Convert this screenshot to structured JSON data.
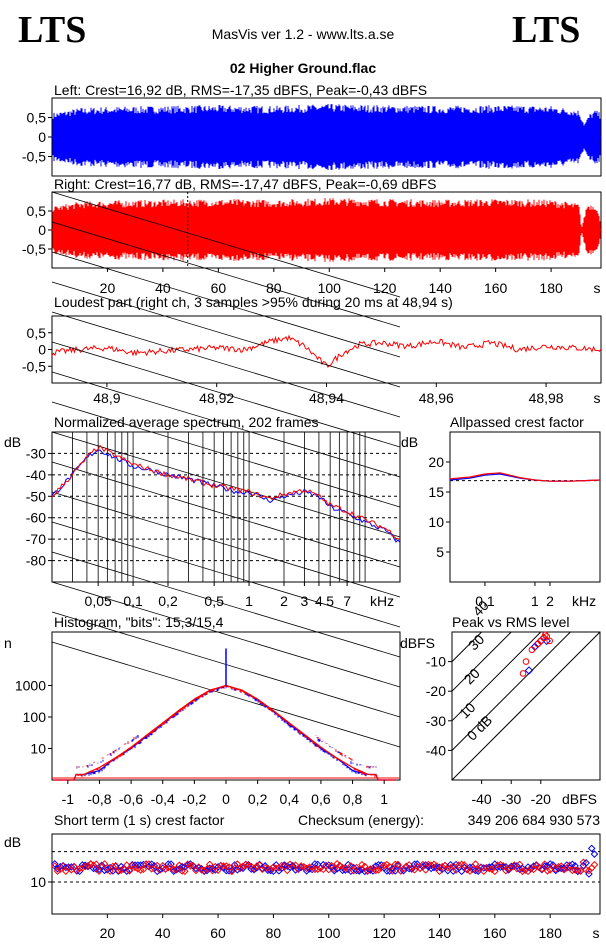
{
  "header": {
    "logo_left": "LTS",
    "logo_right": "LTS",
    "app_title": "MasVis ver 1.2 - www.lts.a.se",
    "file_title": "02 Higher Ground.flac"
  },
  "colors": {
    "left": "#0000ff",
    "right": "#ff0000",
    "frame": "#000000"
  },
  "chart_data": [
    {
      "id": "left-waveform",
      "type": "area",
      "title": "Left: Crest=16,92 dB, RMS=-17,35 dBFS, Peak=-0,43 dBFS",
      "color": "#0000ff",
      "x_range": [
        0,
        198
      ],
      "ylim": [
        -1,
        1
      ],
      "yticks": [
        "0,5",
        "0",
        "-0,5"
      ],
      "ytick_values": [
        0.5,
        0,
        -0.5
      ],
      "envelope": {
        "x": [
          0,
          10,
          20,
          40,
          60,
          80,
          100,
          120,
          140,
          160,
          180,
          190,
          192,
          194,
          196,
          198
        ],
        "amp": [
          0.62,
          0.75,
          0.78,
          0.8,
          0.82,
          0.8,
          0.85,
          0.82,
          0.8,
          0.82,
          0.8,
          0.7,
          0.35,
          0.6,
          0.7,
          0.6
        ]
      }
    },
    {
      "id": "right-waveform",
      "type": "area",
      "title": "Right: Crest=16,77 dB, RMS=-17,47 dBFS, Peak=-0,69 dBFS",
      "color": "#ff0000",
      "x_range": [
        0,
        198
      ],
      "ylim": [
        -1,
        1
      ],
      "yticks": [
        "0,5",
        "0",
        "-0,5"
      ],
      "ytick_values": [
        0.5,
        0,
        -0.5
      ],
      "marker_x": 48.94,
      "envelope": {
        "x": [
          0,
          10,
          20,
          40,
          60,
          80,
          100,
          120,
          140,
          160,
          180,
          190,
          191,
          193,
          196,
          198
        ],
        "amp": [
          0.62,
          0.75,
          0.78,
          0.8,
          0.82,
          0.8,
          0.85,
          0.82,
          0.8,
          0.82,
          0.8,
          0.7,
          0.05,
          0.7,
          0.7,
          0.2
        ]
      },
      "xticks": [
        "20",
        "40",
        "60",
        "80",
        "100",
        "120",
        "140",
        "160",
        "180",
        "s"
      ],
      "xtick_values": [
        20,
        40,
        60,
        80,
        100,
        120,
        140,
        160,
        180
      ]
    },
    {
      "id": "loudest-part",
      "type": "line",
      "title": "Loudest part (right ch, 3 samples >95% during 20 ms at 48,94 s)",
      "color": "#ff0000",
      "xlim": [
        48.89,
        48.99
      ],
      "ylim": [
        -1,
        1
      ],
      "yticks": [
        "0,5",
        "0",
        "-0,5"
      ],
      "ytick_values": [
        0.5,
        0,
        -0.5
      ],
      "xticks": [
        "48,9",
        "48,92",
        "48,94",
        "48,96",
        "48,98",
        "s"
      ],
      "xtick_values": [
        48.9,
        48.92,
        48.94,
        48.96,
        48.98
      ],
      "x": [
        48.89,
        48.895,
        48.9,
        48.905,
        48.91,
        48.915,
        48.92,
        48.925,
        48.93,
        48.933,
        48.936,
        48.938,
        48.94,
        48.943,
        48.946,
        48.95,
        48.955,
        48.96,
        48.965,
        48.97,
        48.975,
        48.98,
        48.985,
        48.99
      ],
      "y": [
        -0.1,
        0.0,
        0.05,
        -0.1,
        -0.05,
        0.0,
        0.05,
        0.0,
        0.25,
        0.35,
        0.1,
        -0.2,
        -0.5,
        -0.1,
        0.15,
        0.2,
        0.1,
        0.25,
        0.05,
        0.2,
        0.0,
        0.1,
        0.05,
        0.0
      ]
    },
    {
      "id": "spectrum",
      "type": "line",
      "title": "Normalized average spectrum, 202 frames",
      "ylabel": "dB",
      "xunit": "kHz",
      "xscale": "log",
      "xlim": [
        0.02,
        20
      ],
      "ylim": [
        -90,
        -20
      ],
      "yticks": [
        "-30",
        "-40",
        "-50",
        "-60",
        "-70",
        "-80"
      ],
      "ytick_values": [
        -30,
        -40,
        -50,
        -60,
        -70,
        -80
      ],
      "xticks": [
        "0,05",
        "0,1",
        "0,2",
        "0,5",
        "1",
        "2",
        "3",
        "4",
        "5",
        "7"
      ],
      "xtick_values": [
        0.05,
        0.1,
        0.2,
        0.5,
        1,
        2,
        3,
        4,
        5,
        7
      ],
      "series": [
        {
          "color": "#0000ff",
          "x": [
            0.02,
            0.03,
            0.04,
            0.05,
            0.07,
            0.1,
            0.15,
            0.2,
            0.3,
            0.5,
            0.8,
            1,
            1.5,
            2,
            3,
            4,
            5,
            7,
            10,
            15,
            20
          ],
          "y": [
            -50,
            -40,
            -32,
            -28,
            -32,
            -36,
            -38,
            -40,
            -42,
            -45,
            -48,
            -48,
            -52,
            -50,
            -48,
            -50,
            -55,
            -58,
            -62,
            -66,
            -72
          ]
        },
        {
          "color": "#ff0000",
          "x": [
            0.02,
            0.03,
            0.04,
            0.05,
            0.07,
            0.1,
            0.15,
            0.2,
            0.3,
            0.5,
            0.8,
            1,
            1.5,
            2,
            3,
            4,
            5,
            7,
            10,
            15,
            20
          ],
          "y": [
            -50,
            -40,
            -32,
            -27,
            -31,
            -35,
            -38,
            -40,
            -42,
            -45,
            -47,
            -48,
            -51,
            -49,
            -47,
            -50,
            -54,
            -57,
            -61,
            -65,
            -70
          ]
        }
      ]
    },
    {
      "id": "allpassed-crest",
      "type": "line",
      "title": "Allpassed crest factor",
      "ylabel": "dB",
      "xunit": "kHz",
      "xscale": "log",
      "xlim": [
        0.02,
        20
      ],
      "ylim": [
        0,
        25
      ],
      "yticks": [
        "20",
        "15",
        "10",
        "5"
      ],
      "ytick_values": [
        20,
        15,
        10,
        5
      ],
      "xticks": [
        "0,1",
        "1",
        "2"
      ],
      "xtick_values": [
        0.1,
        1,
        2
      ],
      "series": [
        {
          "color": "#0000ff",
          "x": [
            0.02,
            0.05,
            0.1,
            0.2,
            0.5,
            1,
            2,
            5,
            10,
            20
          ],
          "y": [
            17.0,
            17.3,
            17.8,
            18.0,
            17.3,
            17.0,
            16.8,
            16.8,
            16.9,
            17.0
          ]
        },
        {
          "color": "#ff0000",
          "x": [
            0.02,
            0.05,
            0.1,
            0.2,
            0.5,
            1,
            2,
            5,
            10,
            20
          ],
          "y": [
            17.2,
            17.5,
            18.0,
            18.2,
            17.4,
            17.0,
            16.8,
            16.8,
            16.9,
            17.0
          ]
        }
      ],
      "reference_y": 16.9
    },
    {
      "id": "histogram",
      "type": "bar",
      "title": "Histogram, \"bits\": 15,3/15,4",
      "ylabel": "n",
      "yscale": "log",
      "xlim": [
        -1.1,
        1.1
      ],
      "ylim": [
        1,
        50000
      ],
      "yticks": [
        "1000",
        "100",
        "10"
      ],
      "ytick_values": [
        1000,
        100,
        10
      ],
      "xticks": [
        "-1",
        "-0,8",
        "-0,6",
        "-0,4",
        "-0,2",
        "0",
        "0,2",
        "0,4",
        "0,6",
        "0,8",
        "1"
      ],
      "xtick_values": [
        -1,
        -0.8,
        -0.6,
        -0.4,
        -0.2,
        0,
        0.2,
        0.4,
        0.6,
        0.8,
        1
      ],
      "series": [
        {
          "color": "#0000ff",
          "x": [
            -0.9,
            -0.8,
            -0.7,
            -0.6,
            -0.5,
            -0.4,
            -0.3,
            -0.2,
            -0.1,
            0,
            0.1,
            0.2,
            0.3,
            0.4,
            0.5,
            0.6,
            0.7,
            0.8,
            0.9
          ],
          "y": [
            1.5,
            2,
            5,
            10,
            25,
            60,
            150,
            350,
            700,
            1000,
            700,
            350,
            150,
            60,
            25,
            10,
            5,
            2,
            1.5
          ]
        },
        {
          "color": "#ff0000",
          "x": [
            -0.9,
            -0.8,
            -0.7,
            -0.6,
            -0.5,
            -0.4,
            -0.3,
            -0.2,
            -0.1,
            0,
            0.1,
            0.2,
            0.3,
            0.4,
            0.5,
            0.6,
            0.7,
            0.8,
            0.9
          ],
          "y": [
            1.5,
            2.5,
            5,
            11,
            27,
            65,
            160,
            370,
            720,
            1000,
            720,
            370,
            160,
            65,
            27,
            11,
            5,
            2.5,
            1.5
          ]
        }
      ],
      "peak_at_zero": 15000
    },
    {
      "id": "peak-vs-rms",
      "type": "scatter",
      "title": "Peak vs RMS level",
      "ylabel": "dBFS",
      "xunit": "dBFS",
      "xlim": [
        -50,
        0
      ],
      "ylim": [
        -50,
        0
      ],
      "yticks": [
        "-10",
        "-20",
        "-30",
        "-40"
      ],
      "ytick_values": [
        -10,
        -20,
        -30,
        -40
      ],
      "xticks": [
        "-40",
        "-30",
        "-20"
      ],
      "xtick_values": [
        -40,
        -30,
        -20
      ],
      "crest_lines": [
        "40",
        "30",
        "20",
        "10",
        "0 dB"
      ],
      "crest_values": [
        40,
        30,
        20,
        10,
        0
      ],
      "series": [
        {
          "color": "#0000ff",
          "x": [
            -22,
            -21,
            -20,
            -19,
            -18,
            -24
          ],
          "y": [
            -5,
            -4,
            -3,
            -2,
            -3,
            -13
          ]
        },
        {
          "color": "#ff0000",
          "x": [
            -23,
            -21,
            -20,
            -19,
            -18,
            -17,
            -25,
            -26,
            -18.5
          ],
          "y": [
            -6,
            -4,
            -3,
            -2,
            -1.5,
            -3,
            -10,
            -14,
            -1
          ]
        }
      ]
    },
    {
      "id": "short-term-crest",
      "type": "scatter",
      "title": "Short term (1 s) crest factor",
      "checksum_label": "Checksum (energy):",
      "checksum_value": "349 206 684 930 573",
      "ylabel": "dB",
      "x_range": [
        0,
        198
      ],
      "ylim": [
        0,
        25
      ],
      "yticks": [
        "10"
      ],
      "ytick_values": [
        10
      ],
      "xticks": [
        "20",
        "40",
        "60",
        "80",
        "100",
        "120",
        "140",
        "160",
        "180",
        "s"
      ],
      "xtick_values": [
        20,
        40,
        60,
        80,
        100,
        120,
        140,
        160,
        180
      ],
      "level": 14.5,
      "spread": 1.2
    }
  ]
}
